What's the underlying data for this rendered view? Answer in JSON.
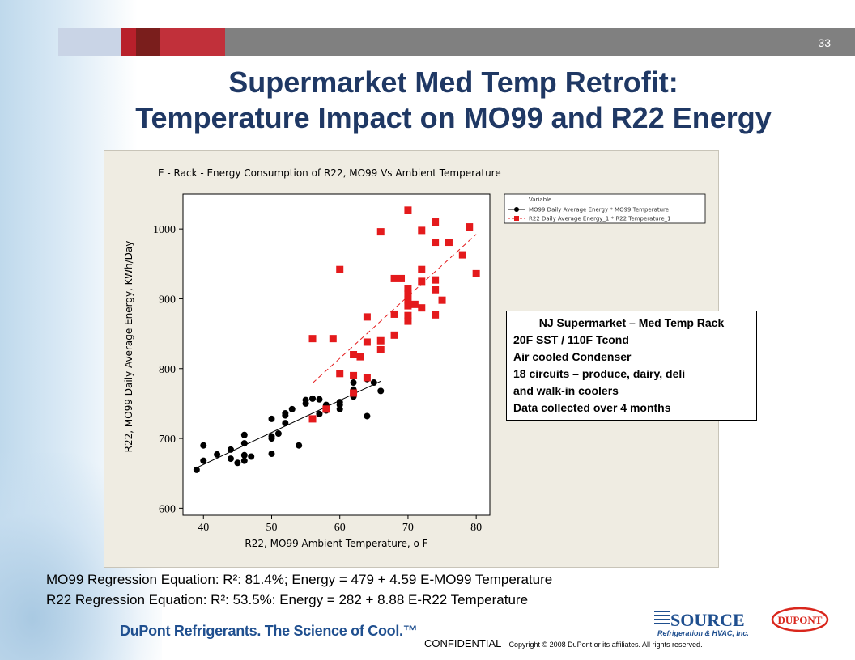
{
  "slide": {
    "page_number": "33",
    "title_line1": "Supermarket Med Temp Retrofit:",
    "title_line2": "Temperature Impact on MO99 and R22 Energy",
    "equation1": "MO99 Regression Equation:  R²: 81.4%; Energy = 479 + 4.59 E-MO99 Temperature",
    "equation2": "R22 Regression Equation: R²:  53.5%: Energy = 282 + 8.88 E-R22 Temperature",
    "tagline": "DuPont Refrigerants. The Science of Cool.™",
    "source_logo_text": "SOURCE",
    "source_logo_sub": "Refrigeration & HVAC, Inc.",
    "dupont_logo_text": "DUPONT",
    "footer_confidential": "CONFIDENTIAL",
    "footer_copyright": "Copyright © 2008 DuPont or its affiliates.  All rights reserved.",
    "colors": {
      "title": "#1f3864",
      "r22": "#e41a1c",
      "mo99": "#000000",
      "bar_gray": "#808080",
      "bar_red": "#c1303a"
    }
  },
  "infobox": {
    "heading": "NJ Supermarket  – Med Temp Rack",
    "lines": [
      "20F  SST / 110F  Tcond",
      "Air cooled  Condenser",
      "18 circuits – produce,  dairy, deli",
      "and walk-in coolers",
      "Data collected  over 4 months"
    ]
  },
  "chart_data": {
    "type": "scatter",
    "title": "E - Rack  - Energy Consumption of R22, MO99 Vs Ambient Temperature",
    "xlabel": "R22, MO99 Ambient Temperature, o F",
    "ylabel": "R22, MO99 Daily Average Energy, KWh/Day",
    "xlim": [
      37,
      82
    ],
    "ylim": [
      590,
      1050
    ],
    "xticks": [
      40,
      50,
      60,
      70,
      80
    ],
    "yticks": [
      600,
      700,
      800,
      900,
      1000
    ],
    "legend_title": "Variable",
    "legend_position": "top-right",
    "series": [
      {
        "name": "MO99 Daily Average Energy * MO99 Temperature",
        "color": "#000000",
        "marker": "circle",
        "fit": {
          "intercept": 479,
          "slope": 4.59,
          "x_range": [
            39,
            66
          ],
          "style": "solid"
        },
        "points": [
          [
            39,
            655
          ],
          [
            40,
            668
          ],
          [
            40,
            690
          ],
          [
            42,
            677
          ],
          [
            44,
            671
          ],
          [
            44,
            684
          ],
          [
            45,
            665
          ],
          [
            46,
            668
          ],
          [
            46,
            676
          ],
          [
            46,
            693
          ],
          [
            46,
            705
          ],
          [
            47,
            674
          ],
          [
            50,
            678
          ],
          [
            50,
            700
          ],
          [
            50,
            703
          ],
          [
            50,
            728
          ],
          [
            51,
            707
          ],
          [
            52,
            722
          ],
          [
            52,
            733
          ],
          [
            52,
            736
          ],
          [
            53,
            742
          ],
          [
            54,
            690
          ],
          [
            55,
            750
          ],
          [
            55,
            755
          ],
          [
            56,
            757
          ],
          [
            57,
            735
          ],
          [
            57,
            756
          ],
          [
            58,
            740
          ],
          [
            58,
            748
          ],
          [
            60,
            742
          ],
          [
            60,
            748
          ],
          [
            60,
            752
          ],
          [
            62,
            760
          ],
          [
            62,
            770
          ],
          [
            62,
            780
          ],
          [
            64,
            732
          ],
          [
            64,
            785
          ],
          [
            65,
            780
          ],
          [
            66,
            768
          ]
        ]
      },
      {
        "name": "R22 Daily Average Energy_1 * R22 Temperature_1",
        "color": "#e41a1c",
        "marker": "square",
        "fit": {
          "intercept": 282,
          "slope": 8.88,
          "x_range": [
            56,
            80
          ],
          "style": "dashed"
        },
        "points": [
          [
            56,
            728
          ],
          [
            56,
            843
          ],
          [
            58,
            742
          ],
          [
            59,
            843
          ],
          [
            60,
            793
          ],
          [
            60,
            942
          ],
          [
            62,
            765
          ],
          [
            62,
            790
          ],
          [
            62,
            820
          ],
          [
            63,
            817
          ],
          [
            64,
            787
          ],
          [
            64,
            838
          ],
          [
            64,
            874
          ],
          [
            66,
            827
          ],
          [
            66,
            840
          ],
          [
            66,
            996
          ],
          [
            68,
            848
          ],
          [
            68,
            878
          ],
          [
            68,
            929
          ],
          [
            69,
            929
          ],
          [
            70,
            868
          ],
          [
            70,
            876
          ],
          [
            70,
            890
          ],
          [
            70,
            898
          ],
          [
            70,
            908
          ],
          [
            70,
            915
          ],
          [
            70,
            1027
          ],
          [
            71,
            892
          ],
          [
            72,
            887
          ],
          [
            72,
            925
          ],
          [
            72,
            942
          ],
          [
            72,
            998
          ],
          [
            74,
            877
          ],
          [
            74,
            913
          ],
          [
            74,
            927
          ],
          [
            74,
            981
          ],
          [
            74,
            1010
          ],
          [
            75,
            898
          ],
          [
            76,
            981
          ],
          [
            78,
            963
          ],
          [
            79,
            1003
          ],
          [
            80,
            936
          ]
        ]
      }
    ]
  }
}
